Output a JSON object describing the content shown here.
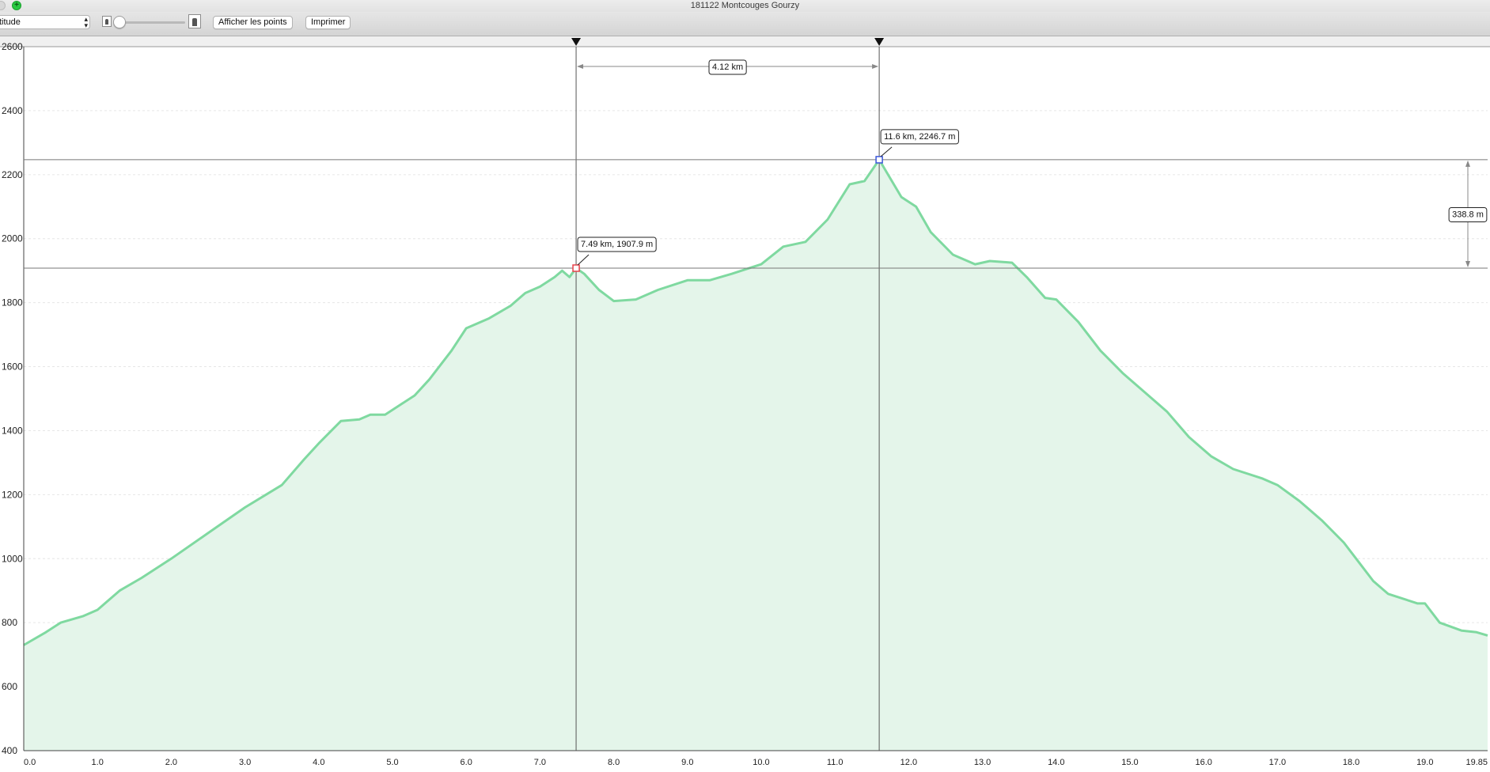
{
  "window": {
    "title": "181122 Montcouges Gourzy"
  },
  "toolbar": {
    "mode_value": "titude",
    "show_points_label": "Afficher les points",
    "print_label": "Imprimer",
    "zoom_level": 0.0
  },
  "colors": {
    "profile_line": "#7fd9a0",
    "profile_fill": "#e4f5ea",
    "marker_a": "#e8424b",
    "marker_b": "#3b57d9",
    "close_button": "#d8d8d8",
    "zoom_button": "#28c840"
  },
  "icons": {
    "zoom_out": "hiker-small-icon",
    "zoom_in": "hiker-large-icon",
    "cursor_marker": "triangle-down-icon",
    "window_zoom": "plus-icon"
  },
  "measurements": {
    "distance_label": "4.12 km",
    "elevation_gain_label": "338.8 m",
    "marker_a_label": "7.49 km, 1907.9 m",
    "marker_b_label": "11.6 km, 2246.7 m",
    "marker_a": {
      "km": 7.49,
      "elev": 1907.9
    },
    "marker_b": {
      "km": 11.6,
      "elev": 2246.7
    }
  },
  "chart_data": {
    "type": "area",
    "title": "",
    "xlabel": "",
    "ylabel": "",
    "xlim": [
      0,
      19.85
    ],
    "ylim": [
      400,
      2600
    ],
    "x_ticks": [
      "0.0",
      "1.0",
      "2.0",
      "3.0",
      "4.0",
      "5.0",
      "6.0",
      "7.0",
      "8.0",
      "9.0",
      "10.0",
      "11.0",
      "12.0",
      "13.0",
      "14.0",
      "15.0",
      "16.0",
      "17.0",
      "18.0",
      "19.0",
      "19.85"
    ],
    "y_ticks": [
      "400",
      "600",
      "800",
      "1000",
      "1200",
      "1400",
      "1600",
      "1800",
      "2000",
      "2200",
      "2400",
      "2600"
    ],
    "grid": true,
    "series": [
      {
        "x": [
          0.0,
          0.3,
          0.5,
          0.8,
          1.0,
          1.3,
          1.6,
          2.0,
          2.5,
          3.0,
          3.5,
          3.8,
          4.0,
          4.3,
          4.55,
          4.7,
          4.9,
          5.1,
          5.3,
          5.5,
          5.8,
          6.0,
          6.3,
          6.6,
          6.8,
          7.0,
          7.2,
          7.3,
          7.4,
          7.49,
          7.6,
          7.8,
          8.0,
          8.3,
          8.6,
          9.0,
          9.3,
          9.6,
          10.0,
          10.3,
          10.6,
          10.9,
          11.2,
          11.4,
          11.6,
          11.9,
          12.1,
          12.3,
          12.6,
          12.9,
          13.1,
          13.4,
          13.6,
          13.85,
          14.0,
          14.3,
          14.6,
          14.9,
          15.2,
          15.5,
          15.8,
          16.1,
          16.4,
          16.8,
          17.0,
          17.3,
          17.6,
          17.9,
          18.1,
          18.3,
          18.5,
          18.9,
          19.0,
          19.2,
          19.5,
          19.7,
          19.85
        ],
        "y": [
          730,
          770,
          800,
          820,
          840,
          900,
          940,
          1000,
          1080,
          1160,
          1230,
          1310,
          1360,
          1430,
          1435,
          1450,
          1450,
          1480,
          1510,
          1560,
          1650,
          1720,
          1750,
          1790,
          1830,
          1850,
          1880,
          1900,
          1880,
          1907.9,
          1890,
          1840,
          1805,
          1810,
          1840,
          1870,
          1870,
          1890,
          1920,
          1975,
          1990,
          2060,
          2170,
          2180,
          2246.7,
          2130,
          2100,
          2020,
          1950,
          1920,
          1930,
          1925,
          1880,
          1815,
          1810,
          1740,
          1650,
          1580,
          1520,
          1460,
          1380,
          1320,
          1280,
          1250,
          1230,
          1180,
          1120,
          1050,
          990,
          930,
          890,
          860,
          860,
          800,
          775,
          770,
          760
        ]
      }
    ]
  }
}
